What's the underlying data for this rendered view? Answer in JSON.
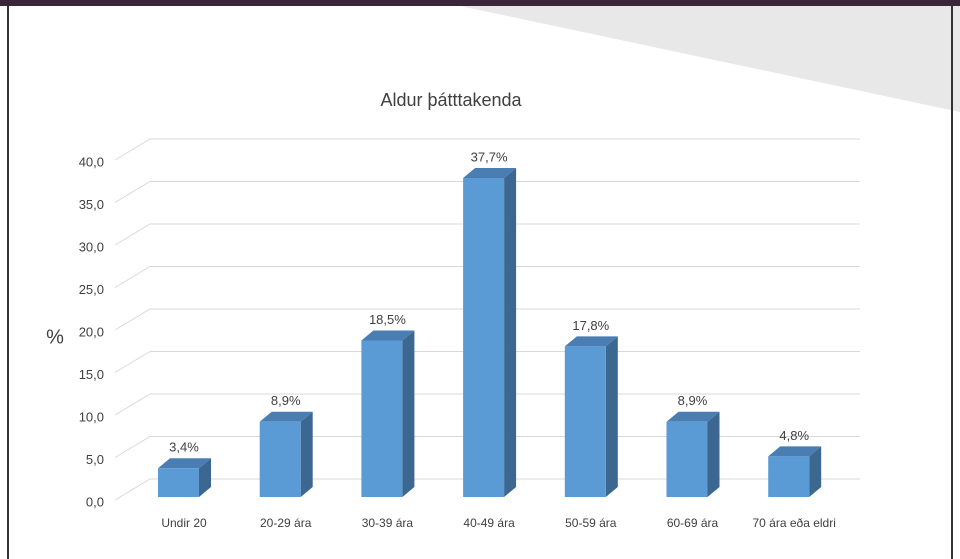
{
  "chart_data": {
    "type": "bar3d",
    "title": "Aldur þátttakenda",
    "y_label": "%",
    "categories": [
      "Undir 20",
      "20-29 ára",
      "30-39 ára",
      "40-49 ára",
      "50-59 ára",
      "60-69 ára",
      "70 ára eða eldri"
    ],
    "values": [
      3.4,
      8.9,
      18.5,
      37.7,
      17.8,
      8.9,
      4.8
    ],
    "value_labels": [
      "3,4%",
      "8,9%",
      "18,5%",
      "37,7%",
      "17,8%",
      "8,9%",
      "4,8%"
    ],
    "color": "#5b9bd5",
    "ylim": [
      0,
      40
    ],
    "yticks": [
      {
        "value": 0,
        "label": "0,0"
      },
      {
        "value": 5,
        "label": "5,0"
      },
      {
        "value": 10,
        "label": "10,0"
      },
      {
        "value": 15,
        "label": "15,0"
      },
      {
        "value": 20,
        "label": "20,0"
      },
      {
        "value": 25,
        "label": "25,0"
      },
      {
        "value": 30,
        "label": "30,0"
      },
      {
        "value": 35,
        "label": "35,0"
      },
      {
        "value": 40,
        "label": "40,0"
      }
    ],
    "grid": true
  }
}
